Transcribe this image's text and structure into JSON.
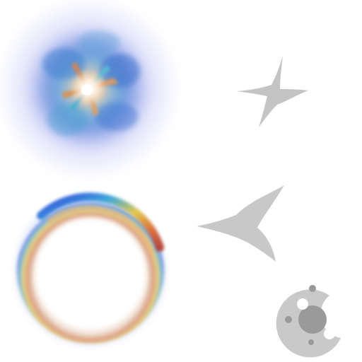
{
  "sheet": {
    "background": "#ffffff",
    "sprites": [
      {
        "id": "lens-flare-burst",
        "type": "glow",
        "colors": [
          "#3b6fd6",
          "#5aa6e0",
          "#e08a4a",
          "#ffffff"
        ]
      },
      {
        "id": "sparkle-star",
        "type": "silhouette",
        "color": "#c4c4c4"
      },
      {
        "id": "rainbow-halo-ring",
        "type": "glow",
        "colors": [
          "#1f2fd8",
          "#2aa0d8",
          "#e3c43a",
          "#d8622a",
          "#ffffff"
        ]
      },
      {
        "id": "crescent-swoosh",
        "type": "silhouette",
        "color": "#c8c8c8"
      },
      {
        "id": "cratered-moon",
        "type": "silhouette",
        "colors": [
          "#c9c9c9",
          "#9a9a9a",
          "#ffffff"
        ]
      }
    ]
  }
}
